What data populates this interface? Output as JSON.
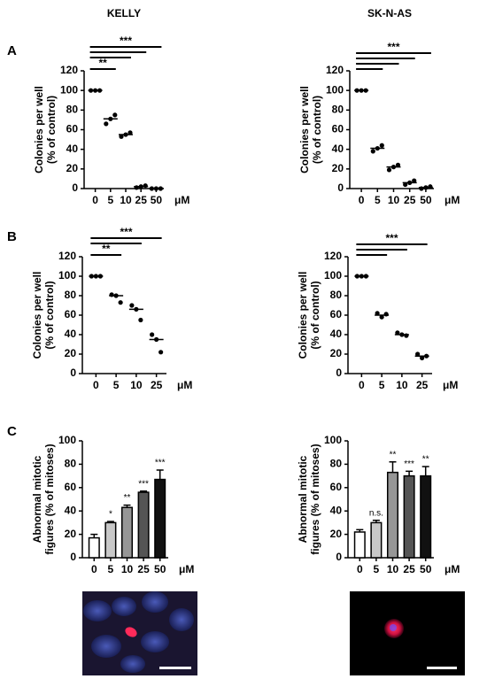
{
  "columns": [
    "KELLY",
    "SK-N-AS"
  ],
  "panel_labels": [
    "A",
    "B",
    "C"
  ],
  "chart_data": [
    {
      "type": "dot",
      "ylabel": [
        "Colonies per well",
        "(% of control)"
      ],
      "x_unit": "μM",
      "categories": [
        "0",
        "5",
        "10",
        "25",
        "50"
      ],
      "points": [
        [
          100,
          100,
          100
        ],
        [
          66,
          71,
          75
        ],
        [
          53,
          55,
          57
        ],
        [
          1,
          2,
          3
        ],
        [
          0,
          0,
          0
        ]
      ],
      "means": [
        100,
        71,
        55,
        2,
        0
      ],
      "ylim": [
        0,
        120
      ],
      "yticks": [
        0,
        20,
        40,
        60,
        80,
        100,
        120
      ],
      "brackets": [
        {
          "from": "0",
          "to": "5",
          "label": "**"
        },
        {
          "from": "0",
          "to": "10"
        },
        {
          "from": "0",
          "to": "25"
        },
        {
          "from": "0",
          "to": "50",
          "label": "***"
        }
      ]
    },
    {
      "type": "dot",
      "ylabel": [
        "Colonies per well",
        "(% of control)"
      ],
      "x_unit": "μM",
      "categories": [
        "0",
        "5",
        "10",
        "25",
        "50"
      ],
      "points": [
        [
          100,
          100,
          100
        ],
        [
          38,
          41,
          44
        ],
        [
          19,
          22,
          24
        ],
        [
          4,
          6,
          8
        ],
        [
          0,
          1,
          2
        ]
      ],
      "means": [
        100,
        41,
        22,
        6,
        1
      ],
      "ylim": [
        0,
        120
      ],
      "yticks": [
        0,
        20,
        40,
        60,
        80,
        100,
        120
      ],
      "brackets": [
        {
          "from": "0",
          "to": "5"
        },
        {
          "from": "0",
          "to": "10"
        },
        {
          "from": "0",
          "to": "25"
        },
        {
          "from": "0",
          "to": "50",
          "label": "***"
        }
      ]
    },
    {
      "type": "dot",
      "ylabel": [
        "Colonies per well",
        "(% of control)"
      ],
      "x_unit": "μM",
      "categories": [
        "0",
        "5",
        "10",
        "25"
      ],
      "points": [
        [
          100,
          100,
          100
        ],
        [
          81,
          80,
          73
        ],
        [
          70,
          66,
          55
        ],
        [
          40,
          35,
          22
        ]
      ],
      "means": [
        100,
        80,
        66,
        35
      ],
      "ylim": [
        0,
        120
      ],
      "yticks": [
        0,
        20,
        40,
        60,
        80,
        100,
        120
      ],
      "brackets": [
        {
          "from": "0",
          "to": "5",
          "label": "**"
        },
        {
          "from": "0",
          "to": "10"
        },
        {
          "from": "0",
          "to": "25",
          "label": "***"
        }
      ]
    },
    {
      "type": "dot",
      "ylabel": [
        "Colonies per well",
        "(% of control)"
      ],
      "x_unit": "μM",
      "categories": [
        "0",
        "5",
        "10",
        "25"
      ],
      "points": [
        [
          100,
          100,
          100
        ],
        [
          62,
          58,
          61
        ],
        [
          42,
          40,
          39
        ],
        [
          20,
          16,
          18
        ]
      ],
      "means": [
        100,
        60,
        40,
        18
      ],
      "ylim": [
        0,
        120
      ],
      "yticks": [
        0,
        20,
        40,
        60,
        80,
        100,
        120
      ],
      "brackets": [
        {
          "from": "0",
          "to": "5"
        },
        {
          "from": "0",
          "to": "10"
        },
        {
          "from": "0",
          "to": "25",
          "label": "***"
        }
      ]
    },
    {
      "type": "bar",
      "ylabel": [
        "Abnormal mitotic",
        "figures (% of mitoses)"
      ],
      "x_unit": "μM",
      "categories": [
        "0",
        "5",
        "10",
        "25",
        "50"
      ],
      "values": [
        17,
        30,
        43,
        56,
        67
      ],
      "errors": [
        3,
        1,
        2,
        1,
        8
      ],
      "colors": [
        "#ffffff",
        "#c8c8c8",
        "#969696",
        "#555555",
        "#111111"
      ],
      "value_labels": [
        null,
        "*",
        "**",
        "***",
        "***"
      ],
      "ylim": [
        0,
        100
      ],
      "yticks": [
        0,
        20,
        40,
        60,
        80,
        100
      ]
    },
    {
      "type": "bar",
      "ylabel": [
        "Abnormal mitotic",
        "figures (% of mitoses)"
      ],
      "x_unit": "μM",
      "categories": [
        "0",
        "5",
        "10",
        "25",
        "50"
      ],
      "values": [
        22,
        30,
        73,
        70,
        70
      ],
      "errors": [
        2,
        2,
        9,
        4,
        8
      ],
      "colors": [
        "#ffffff",
        "#c8c8c8",
        "#969696",
        "#555555",
        "#111111"
      ],
      "value_labels": [
        null,
        "n.s.",
        "**",
        "***",
        "**"
      ],
      "ylim": [
        0,
        100
      ],
      "yticks": [
        0,
        20,
        40,
        60,
        80,
        100
      ]
    }
  ]
}
